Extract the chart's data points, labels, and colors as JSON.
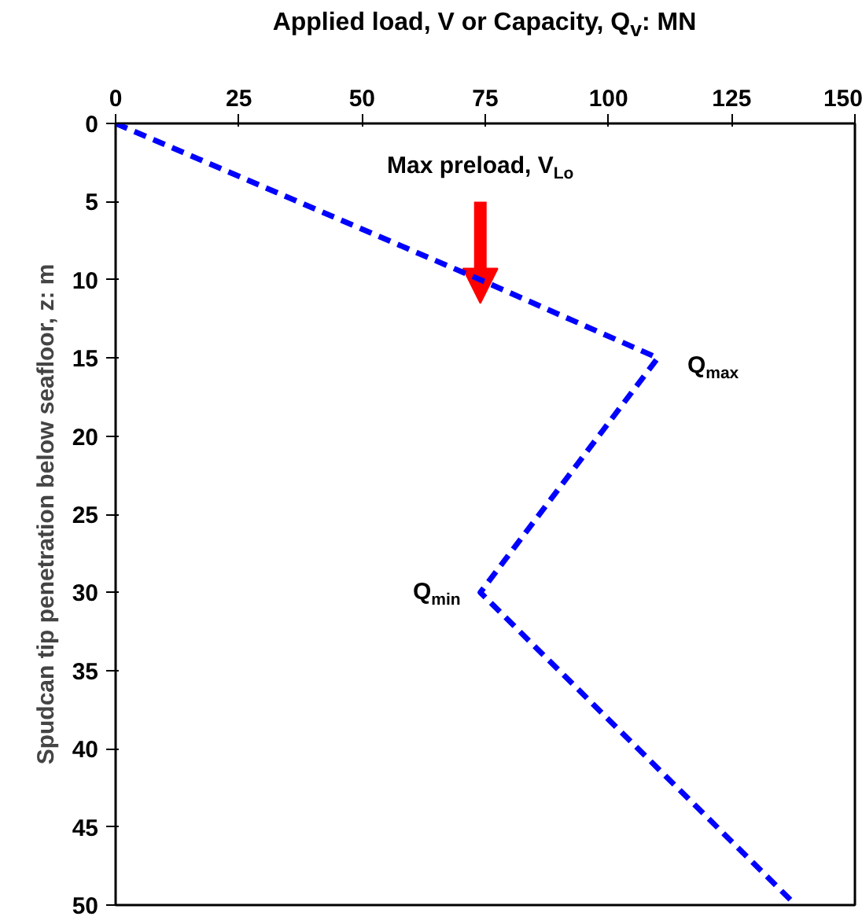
{
  "chart_data": {
    "type": "line",
    "xlabel": "Applied load, V or Capacity, Q$_{v}$: MN",
    "ylabel": "Spudcan tip penetration below seafloor, z: m",
    "x": [
      0,
      74,
      110,
      74,
      138
    ],
    "series": [
      {
        "color": "#0000ff",
        "values": [
          0,
          10,
          15,
          30,
          50
        ]
      }
    ],
    "xlim": [
      0,
      150
    ],
    "xticks": [
      0,
      25,
      50,
      75,
      100,
      125,
      150
    ],
    "ylim": [
      50,
      0
    ],
    "yticks": [
      0,
      5,
      10,
      15,
      20,
      25,
      30,
      35,
      40,
      45,
      50
    ],
    "annotations": [
      "Max preload, V$_{Lo}$",
      {
        "text": "Q$_{max}$",
        "x": 110,
        "y": 15
      },
      {
        "text": "Q$_{min}$",
        "x": 74,
        "y": 30
      }
    ],
    "grid": false,
    "legend": false,
    "marker": "none",
    "line_style": "dashed"
  }
}
